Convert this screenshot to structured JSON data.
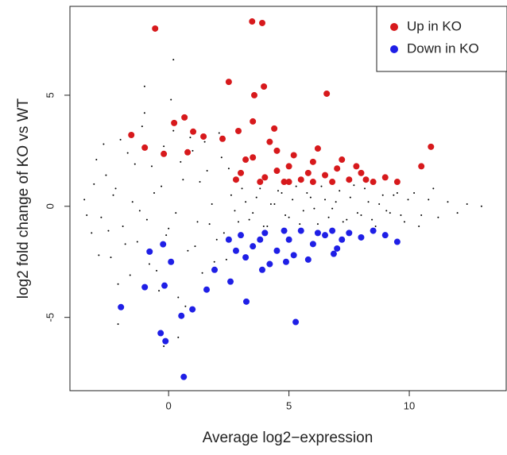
{
  "chart_data": {
    "type": "scatter",
    "x_label": "Average log2−expression",
    "y_label": "log2 fold change of KO vs WT",
    "xlim": [
      -4.1,
      14.06
    ],
    "ylim": [
      -8.3,
      9.0
    ],
    "xticks": [
      0,
      5,
      10
    ],
    "yticks": [
      -5,
      0,
      5
    ],
    "grid": false,
    "legend": "top-right",
    "series": [
      {
        "color": "#000000",
        "x": [
          -3.5,
          -3.2,
          -3.0,
          -2.8,
          -2.6,
          -2.4,
          -2.2,
          -2.0,
          -1.8,
          -1.6,
          -1.4,
          -1.2,
          -1.0,
          -0.8,
          -0.6,
          -0.4,
          -0.2,
          0,
          0.2,
          0.4,
          0.6,
          0.8,
          1.0,
          1.2,
          1.4,
          1.6,
          1.8,
          2.0,
          2.2,
          2.4,
          -3.4,
          -3.1,
          -2.9,
          -2.7,
          -2.5,
          -2.3,
          -2.1,
          -1.9,
          -1.7,
          -1.5,
          -1.3,
          -1.1,
          -0.9,
          -0.7,
          -0.5,
          -0.3,
          -0.1,
          0.1,
          0.3,
          0.5,
          0.7,
          0.9,
          1.1,
          1.3,
          1.5,
          1.7,
          1.9,
          2.1,
          2.3,
          2.5,
          2.6,
          2.9,
          3.2,
          3.5,
          3.8,
          4.1,
          4.4,
          4.7,
          5.0,
          5.3,
          5.6,
          5.9,
          6.2,
          6.5,
          6.8,
          7.1,
          7.4,
          7.7,
          8.0,
          8.3,
          8.6,
          8.9,
          9.2,
          9.5,
          9.8,
          2.75,
          3.05,
          3.35,
          3.65,
          3.95,
          4.25,
          4.55,
          4.85,
          5.15,
          5.45,
          5.75,
          6.05,
          6.35,
          6.65,
          6.95,
          7.25,
          7.55,
          7.85,
          8.15,
          8.45,
          8.75,
          9.05,
          9.35,
          9.65,
          9.95,
          10.2,
          10.5,
          10.8,
          11.2,
          11.6,
          12.0,
          12.4,
          13.0,
          11.0,
          10.4,
          0.2,
          -1.0,
          -0.2,
          0.4,
          -2.1
        ],
        "values": [
          0.3,
          -1.2,
          2.1,
          -0.5,
          1.4,
          -2.3,
          0.8,
          3.0,
          -1.7,
          -3.1,
          1.9,
          -0.2,
          4.2,
          -2.6,
          0.6,
          -3.8,
          2.7,
          -1.0,
          3.4,
          -4.1,
          1.2,
          -2.0,
          2.5,
          -0.7,
          -3.0,
          1.6,
          0.1,
          -1.5,
          2.2,
          -2.4,
          -0.4,
          1.0,
          -2.2,
          2.8,
          -1.1,
          0.5,
          -3.5,
          -0.9,
          2.4,
          0.2,
          -1.6,
          3.6,
          -0.6,
          1.8,
          -2.9,
          0.9,
          -1.3,
          4.8,
          -0.3,
          2.0,
          -4.5,
          3.1,
          -1.8,
          1.1,
          2.9,
          -0.8,
          -2.5,
          3.3,
          -1.2,
          1.7,
          0.5,
          -0.7,
          0.2,
          -0.3,
          0.8,
          -0.9,
          0.1,
          0.6,
          -0.5,
          0.9,
          -0.2,
          0.4,
          -0.8,
          0.3,
          -0.1,
          0.7,
          -0.6,
          0.95,
          -0.4,
          0.2,
          -0.9,
          0.5,
          -0.3,
          0.6,
          -0.7,
          -0.2,
          0.8,
          -0.6,
          0.4,
          -0.9,
          0.1,
          0.7,
          -0.4,
          0.3,
          -0.8,
          0.6,
          -0.1,
          0.9,
          -0.5,
          0.2,
          -0.7,
          0.4,
          -0.3,
          0.8,
          -0.6,
          0.1,
          -0.2,
          0.5,
          -0.4,
          0.3,
          0.6,
          -0.4,
          0.3,
          -0.5,
          0.2,
          -0.3,
          0.1,
          0.0,
          0.8,
          -0.9,
          6.6,
          5.4,
          -6.3,
          -5.9,
          -5.3
        ]
      },
      {
        "name": "Up in KO",
        "color": "#d7191c",
        "x": [
          -0.56,
          3.47,
          3.89,
          2.5,
          3.96,
          6.57,
          3.56,
          0.66,
          0.23,
          3.5,
          -1.55,
          -0.99,
          10.9,
          -0.2,
          1.02,
          2.9,
          2.24,
          4.39,
          0.79,
          1.45,
          3.0,
          3.5,
          4.0,
          4.5,
          5.0,
          5.5,
          6.0,
          6.5,
          7.0,
          7.5,
          8.0,
          8.5,
          9.0,
          9.5,
          10.5,
          4.2,
          5.2,
          6.2,
          3.2,
          4.8,
          5.8,
          6.8,
          7.2,
          5.0,
          6.0,
          7.8,
          4.5,
          3.8,
          2.8,
          8.2
        ],
        "values": [
          8.0,
          8.32,
          8.25,
          5.6,
          5.39,
          5.07,
          5.0,
          4.0,
          3.75,
          3.82,
          3.21,
          2.64,
          2.68,
          2.36,
          3.36,
          3.39,
          3.04,
          3.5,
          2.43,
          3.14,
          1.5,
          2.2,
          1.3,
          2.5,
          1.8,
          1.2,
          2.0,
          1.4,
          1.7,
          1.2,
          1.5,
          1.1,
          1.3,
          1.1,
          1.8,
          2.9,
          2.3,
          2.6,
          2.1,
          1.1,
          1.5,
          1.1,
          2.1,
          1.1,
          1.1,
          1.8,
          1.6,
          1.1,
          1.2,
          1.2
        ]
      },
      {
        "name": "Down in KO",
        "color": "#1f1fe6",
        "x": [
          0.63,
          -0.33,
          -0.13,
          -1.98,
          5.28,
          0.53,
          0.99,
          -0.99,
          -0.17,
          1.58,
          3.23,
          0.1,
          -0.79,
          -0.23,
          1.91,
          2.57,
          3.89,
          4.88,
          6.86,
          3.0,
          3.5,
          4.0,
          4.5,
          5.0,
          5.5,
          6.0,
          6.5,
          7.0,
          7.5,
          8.0,
          8.5,
          9.0,
          9.5,
          2.5,
          3.2,
          4.2,
          5.2,
          6.2,
          7.2,
          5.8,
          4.8,
          3.8,
          2.8,
          6.8
        ],
        "values": [
          -7.68,
          -5.71,
          -6.07,
          -4.54,
          -5.21,
          -4.93,
          -4.64,
          -3.64,
          -3.57,
          -3.75,
          -4.29,
          -2.5,
          -2.04,
          -1.71,
          -2.86,
          -3.39,
          -2.86,
          -2.5,
          -2.14,
          -1.3,
          -1.8,
          -1.2,
          -2.0,
          -1.5,
          -1.1,
          -1.7,
          -1.3,
          -1.9,
          -1.2,
          -1.4,
          -1.1,
          -1.3,
          -1.6,
          -1.5,
          -2.3,
          -2.6,
          -2.2,
          -1.2,
          -1.5,
          -2.4,
          -1.1,
          -1.5,
          -2.0,
          -1.1
        ]
      }
    ]
  }
}
